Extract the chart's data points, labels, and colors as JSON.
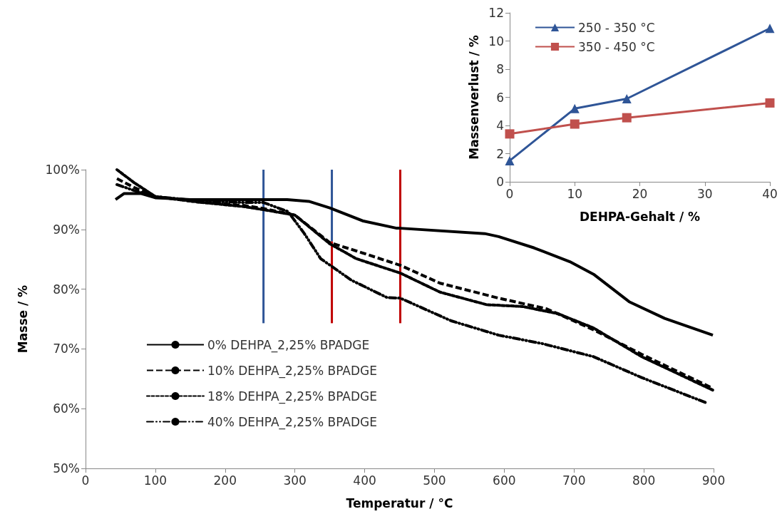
{
  "chart_data": [
    {
      "type": "line",
      "xlabel": "Temperatur / °C",
      "ylabel": "Masse / %",
      "xlim": [
        0,
        900
      ],
      "xticks": [
        0,
        100,
        200,
        300,
        400,
        500,
        600,
        700,
        800,
        900
      ],
      "ylim": [
        50,
        100
      ],
      "yticks": [
        {
          "value": 50,
          "label": "50%"
        },
        {
          "value": 60,
          "label": "60%"
        },
        {
          "value": 70,
          "label": "70%"
        },
        {
          "value": 80,
          "label": "80%"
        },
        {
          "value": 90,
          "label": "90%"
        },
        {
          "value": 100,
          "label": "100%"
        }
      ],
      "grid": false,
      "legend": "bottom left",
      "marker": "none",
      "series": [
        {
          "name": "0% DEHPA_2,25% BPADGE",
          "color": "#000000",
          "line_style": "solid",
          "x": [
            43,
            55,
            80,
            100,
            150,
            200,
            289,
            320,
            350,
            398,
            446,
            451,
            572,
            592,
            643,
            694,
            728,
            779,
            830,
            899
          ],
          "values": [
            95.0,
            96.0,
            96.0,
            95.3,
            95.0,
            95.0,
            95.0,
            94.7,
            93.6,
            91.4,
            90.2,
            90.2,
            89.3,
            88.8,
            86.9,
            84.6,
            82.5,
            77.9,
            75.1,
            72.3
          ]
        },
        {
          "name": "10% DEHPA_2,25% BPADGE",
          "color": "#000000",
          "line_style": "dashed",
          "x": [
            45,
            70,
            100,
            160,
            228,
            255,
            300,
            350,
            388,
            451,
            508,
            592,
            661,
            728,
            797,
            899
          ],
          "values": [
            98.5,
            97.0,
            95.5,
            94.6,
            94.0,
            93.5,
            92.4,
            87.8,
            86.4,
            84.0,
            81.0,
            78.5,
            76.7,
            73.2,
            69.1,
            63.4
          ]
        },
        {
          "name": "18% DEHPA_2,25% BPADGE",
          "color": "#000000",
          "line_style": "dotted",
          "x": [
            45,
            70,
            100,
            160,
            228,
            255,
            300,
            350,
            388,
            451,
            508,
            575,
            626,
            677,
            728,
            797,
            899
          ],
          "values": [
            100.0,
            97.8,
            95.5,
            94.6,
            93.8,
            93.3,
            92.4,
            87.6,
            85.1,
            82.7,
            79.5,
            77.4,
            77.1,
            75.9,
            73.5,
            68.7,
            63.1
          ]
        },
        {
          "name": "40% DEHPA_2,25% BPADGE",
          "color": "#000000",
          "line_style": "dashdot",
          "x": [
            45,
            70,
            100,
            160,
            228,
            255,
            290,
            313,
            337,
            381,
            432,
            451,
            524,
            592,
            654,
            728,
            797,
            889
          ],
          "values": [
            97.5,
            96.5,
            95.5,
            94.8,
            94.5,
            94.5,
            93.0,
            89.4,
            85.1,
            81.5,
            78.6,
            78.5,
            74.7,
            72.3,
            70.9,
            68.7,
            65.2,
            61.0
          ]
        },
        {
          "color": "#2f5597",
          "line_style": "solid",
          "x": [
            255,
            255
          ],
          "values": [
            100,
            74.3
          ]
        },
        {
          "color": "#2f5597",
          "line_style": "solid",
          "x": [
            353,
            353
          ],
          "values": [
            100,
            88
          ]
        },
        {
          "color": "#c00000",
          "line_style": "solid",
          "x": [
            353,
            353
          ],
          "values": [
            88,
            74.3
          ]
        },
        {
          "color": "#c00000",
          "line_style": "solid",
          "x": [
            451,
            451
          ],
          "values": [
            100,
            74.3
          ]
        }
      ]
    },
    {
      "type": "line",
      "xlabel": "DEHPA-Gehalt / %",
      "ylabel": "Massenverlust / %",
      "xlim": [
        0,
        40
      ],
      "xticks": [
        0,
        10,
        20,
        30,
        40
      ],
      "ylim": [
        0,
        12
      ],
      "yticks": [
        0,
        2,
        4,
        6,
        8,
        10,
        12
      ],
      "grid": false,
      "legend": "top left",
      "x": [
        0,
        10,
        18,
        40
      ],
      "series": [
        {
          "name": "250 - 350 °C",
          "color": "#2f5597",
          "marker": "triangle",
          "values": [
            1.5,
            5.2,
            5.9,
            10.9
          ]
        },
        {
          "name": "350 - 450 °C",
          "color": "#c0504d",
          "marker": "square",
          "values": [
            3.4,
            4.1,
            4.55,
            5.6
          ]
        }
      ]
    }
  ]
}
